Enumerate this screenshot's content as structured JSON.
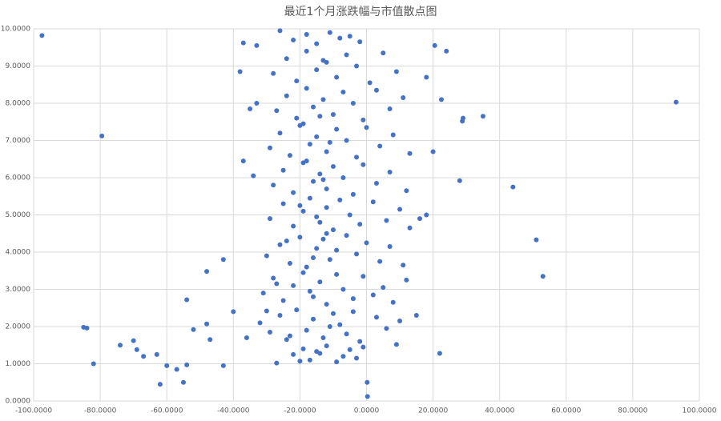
{
  "chart_data": {
    "type": "scatter",
    "title": "最近1个月涨跌幅与市值散点图",
    "xlim": [
      -100,
      100
    ],
    "xticks": [
      {
        "value": -100,
        "label": "-100.0000"
      },
      {
        "value": -80,
        "label": "-80.0000"
      },
      {
        "value": -60,
        "label": "-60.0000"
      },
      {
        "value": -40,
        "label": "-40.0000"
      },
      {
        "value": -20,
        "label": "-20.0000"
      },
      {
        "value": 0,
        "label": "0.0000"
      },
      {
        "value": 20,
        "label": "20.0000"
      },
      {
        "value": 40,
        "label": "40.0000"
      },
      {
        "value": 60,
        "label": "60.0000"
      },
      {
        "value": 80,
        "label": "80.0000"
      },
      {
        "value": 100,
        "label": "100.0000"
      }
    ],
    "ylim": [
      0,
      10
    ],
    "yticks": [
      {
        "value": 0,
        "label": "0.0000"
      },
      {
        "value": 1,
        "label": "1.0000"
      },
      {
        "value": 2,
        "label": "2.0000"
      },
      {
        "value": 3,
        "label": "3.0000"
      },
      {
        "value": 4,
        "label": "4.0000"
      },
      {
        "value": 5,
        "label": "5.0000"
      },
      {
        "value": 6,
        "label": "6.0000"
      },
      {
        "value": 7,
        "label": "7.0000"
      },
      {
        "value": 8,
        "label": "8.0000"
      },
      {
        "value": 9,
        "label": "9.0000"
      },
      {
        "value": 10,
        "label": "10.0000"
      }
    ],
    "grid": true,
    "series": [
      {
        "color": "#4472c4",
        "x": [
          -97.5,
          -79.5,
          93,
          35,
          29,
          28.8,
          22.5,
          20,
          28,
          44,
          51,
          53,
          22,
          -85,
          -84,
          -82,
          -74,
          -70,
          -69,
          -67,
          -63,
          -62,
          -60,
          -57,
          -55,
          -54,
          -54,
          -52,
          -48,
          -47,
          -48,
          -43,
          -43,
          -40,
          -38,
          -37,
          -37,
          -35,
          -34,
          -33,
          -33,
          -36,
          24,
          20.5,
          18,
          18,
          16,
          15,
          9,
          0.3,
          0.2,
          -27,
          -22,
          -19,
          -17,
          -15,
          -12,
          -9,
          -7,
          -5,
          -3,
          -1,
          -20,
          -14,
          -32,
          -29,
          -26,
          -24,
          -21,
          -18,
          -16,
          -13,
          -10,
          -8,
          -6,
          -4,
          -2,
          3,
          6,
          10,
          -30,
          -23,
          -11,
          -31,
          -28,
          -25,
          -22,
          -19,
          -16,
          -14,
          -12,
          -9,
          -7,
          -4,
          -1,
          2,
          5,
          8,
          12,
          -27,
          -17,
          -30,
          -26,
          -23,
          -20,
          -18,
          -15,
          -13,
          -11,
          -9,
          -6,
          -3,
          0,
          4,
          7,
          11,
          -24,
          -16,
          -12,
          -29,
          -25,
          -22,
          -19,
          -17,
          -14,
          -12,
          -10,
          -8,
          -5,
          -2,
          2,
          6,
          10,
          13,
          -20,
          -15,
          -28,
          -25,
          -22,
          -19,
          -16,
          -14,
          -12,
          -10,
          -7,
          -4,
          -1,
          3,
          7,
          12,
          -18,
          -13,
          -29,
          -26,
          -23,
          -20,
          -17,
          -15,
          -12,
          -9,
          -6,
          -3,
          0,
          4,
          8,
          13,
          -19,
          -11,
          -27,
          -24,
          -21,
          -18,
          -16,
          -13,
          -10,
          -7,
          -4,
          -1,
          3,
          7,
          11,
          -14,
          -28,
          -24,
          -21,
          -18,
          -15,
          -12,
          -9,
          -6,
          -3,
          1,
          5,
          9,
          -13,
          -26,
          -22,
          -18,
          -15,
          -11,
          -8,
          -5,
          -2
        ],
        "values": [
          9.82,
          7.12,
          8.03,
          7.65,
          7.6,
          7.52,
          8.1,
          6.7,
          5.92,
          5.75,
          4.33,
          3.35,
          1.28,
          1.98,
          1.96,
          1.0,
          1.5,
          1.62,
          1.38,
          1.2,
          1.25,
          0.45,
          0.95,
          0.85,
          0.5,
          2.72,
          0.97,
          1.92,
          2.07,
          1.65,
          3.48,
          0.95,
          3.8,
          2.4,
          8.85,
          9.62,
          6.45,
          7.85,
          6.05,
          8.0,
          9.55,
          1.7,
          9.4,
          9.55,
          8.7,
          5.0,
          4.9,
          2.3,
          1.52,
          0.12,
          0.5,
          1.02,
          1.25,
          1.4,
          1.1,
          1.33,
          1.48,
          1.05,
          1.2,
          1.38,
          1.15,
          1.45,
          1.07,
          1.28,
          2.1,
          1.85,
          2.3,
          1.65,
          2.45,
          1.9,
          2.2,
          1.7,
          2.35,
          2.05,
          1.8,
          2.4,
          1.6,
          2.25,
          1.95,
          2.15,
          2.42,
          1.75,
          2.0,
          2.9,
          3.3,
          2.7,
          3.1,
          3.45,
          2.8,
          3.2,
          2.6,
          3.4,
          3.0,
          2.75,
          3.35,
          2.85,
          3.05,
          2.65,
          3.25,
          3.15,
          2.95,
          3.9,
          4.2,
          3.7,
          4.4,
          3.6,
          4.1,
          4.35,
          3.8,
          4.05,
          4.45,
          3.95,
          4.25,
          3.75,
          4.15,
          3.65,
          4.3,
          3.85,
          4.5,
          4.9,
          5.3,
          4.7,
          5.1,
          5.45,
          4.8,
          5.2,
          4.6,
          5.4,
          5.0,
          4.75,
          5.35,
          4.85,
          5.15,
          4.65,
          5.25,
          4.95,
          5.8,
          6.2,
          5.6,
          6.4,
          5.9,
          6.1,
          5.7,
          6.3,
          6.0,
          5.55,
          6.35,
          5.85,
          6.15,
          5.65,
          6.45,
          5.95,
          6.8,
          7.2,
          6.6,
          7.4,
          6.9,
          7.1,
          6.7,
          7.3,
          7.0,
          6.55,
          7.35,
          6.85,
          7.15,
          6.65,
          7.45,
          6.95,
          7.8,
          8.2,
          7.6,
          8.4,
          7.9,
          8.1,
          7.7,
          8.3,
          8.0,
          7.55,
          8.35,
          7.85,
          8.15,
          7.65,
          8.8,
          9.2,
          8.6,
          9.4,
          8.9,
          9.1,
          8.7,
          9.3,
          9.0,
          8.55,
          9.35,
          8.85,
          9.15,
          9.95,
          9.7,
          9.85,
          9.6,
          9.9,
          9.75,
          9.8,
          9.65
        ]
      }
    ]
  }
}
